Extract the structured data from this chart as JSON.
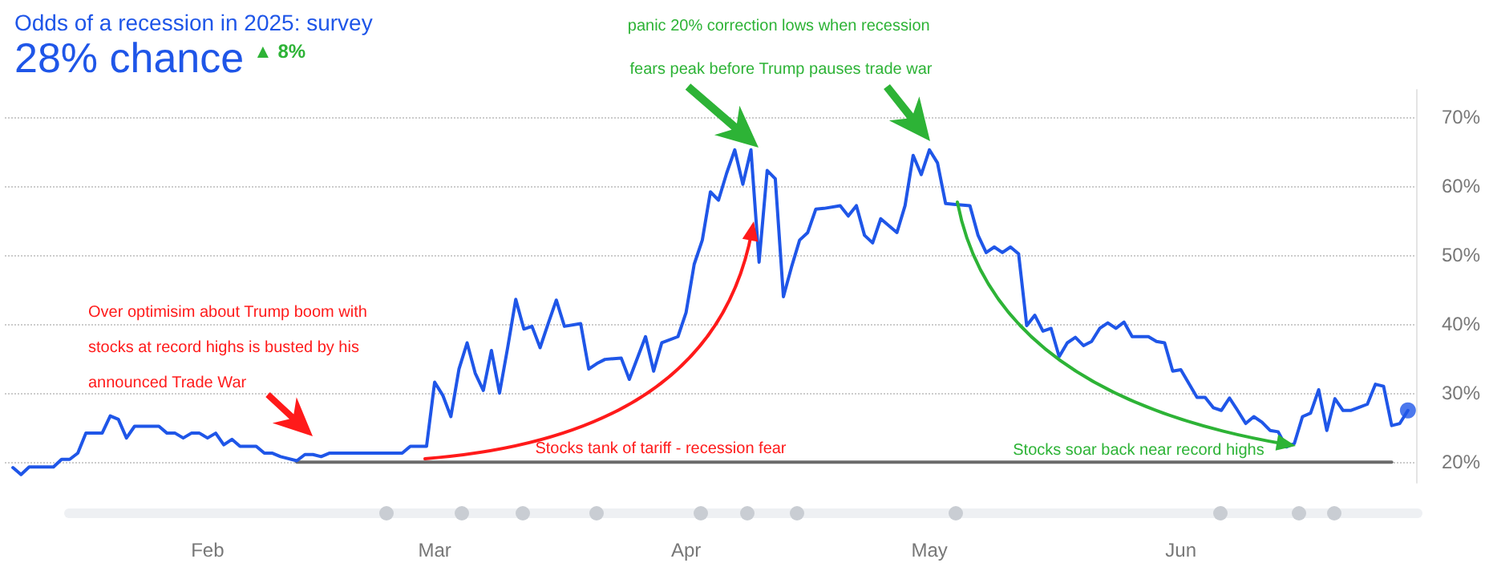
{
  "chart_data": {
    "type": "line",
    "title": "Odds of a recession in 2025: survey",
    "subtitle": "28% chance",
    "xlim": [
      "2025-01-07",
      "2025-06-30"
    ],
    "xticks": [
      {
        "value": "2025-02-01",
        "label": "Feb"
      },
      {
        "value": "2025-03-01",
        "label": "Mar"
      },
      {
        "value": "2025-04-01",
        "label": "Apr"
      },
      {
        "value": "2025-05-01",
        "label": "May"
      },
      {
        "value": "2025-06-01",
        "label": "Jun"
      }
    ],
    "ylim": [
      17,
      74
    ],
    "yticks": [
      {
        "value": 20,
        "label": "20%"
      },
      {
        "value": 30,
        "label": "30%"
      },
      {
        "value": 40,
        "label": "40%"
      },
      {
        "value": 50,
        "label": "50%"
      },
      {
        "value": 60,
        "label": "60%"
      },
      {
        "value": 70,
        "label": "70%"
      }
    ],
    "grid": "y",
    "series": [
      {
        "color": "#1f56e8",
        "x": [
          "2025-01-08",
          "2025-01-09",
          "2025-01-10",
          "2025-01-13",
          "2025-01-14",
          "2025-01-15",
          "2025-01-16",
          "2025-01-17",
          "2025-01-19",
          "2025-01-20",
          "2025-01-21",
          "2025-01-22",
          "2025-01-23",
          "2025-01-26",
          "2025-01-27",
          "2025-01-28",
          "2025-01-29",
          "2025-01-30",
          "2025-01-31",
          "2025-02-01",
          "2025-02-02",
          "2025-02-03",
          "2025-02-04",
          "2025-02-05",
          "2025-02-07",
          "2025-02-08",
          "2025-02-09",
          "2025-02-10",
          "2025-02-12",
          "2025-02-13",
          "2025-02-14",
          "2025-02-15",
          "2025-02-16",
          "2025-02-25",
          "2025-02-26",
          "2025-02-28",
          "2025-03-01",
          "2025-03-02",
          "2025-03-03",
          "2025-03-04",
          "2025-03-05",
          "2025-03-06",
          "2025-03-07",
          "2025-03-08",
          "2025-03-09",
          "2025-03-10",
          "2025-03-11",
          "2025-03-12",
          "2025-03-13",
          "2025-03-14",
          "2025-03-15",
          "2025-03-16",
          "2025-03-17",
          "2025-03-19",
          "2025-03-20",
          "2025-03-21",
          "2025-03-22",
          "2025-03-24",
          "2025-03-25",
          "2025-03-27",
          "2025-03-28",
          "2025-03-29",
          "2025-03-31",
          "2025-04-01",
          "2025-04-02",
          "2025-04-03",
          "2025-04-04",
          "2025-04-05",
          "2025-04-06",
          "2025-04-07",
          "2025-04-08",
          "2025-04-09",
          "2025-04-10",
          "2025-04-11",
          "2025-04-12",
          "2025-04-13",
          "2025-04-14",
          "2025-04-15",
          "2025-04-16",
          "2025-04-17",
          "2025-04-18",
          "2025-04-20",
          "2025-04-21",
          "2025-04-22",
          "2025-04-23",
          "2025-04-24",
          "2025-04-25",
          "2025-04-27",
          "2025-04-28",
          "2025-04-29",
          "2025-04-30",
          "2025-05-01",
          "2025-05-02",
          "2025-05-03",
          "2025-05-04",
          "2025-05-06",
          "2025-05-07",
          "2025-05-08",
          "2025-05-09",
          "2025-05-10",
          "2025-05-11",
          "2025-05-12",
          "2025-05-13",
          "2025-05-14",
          "2025-05-15",
          "2025-05-16",
          "2025-05-17",
          "2025-05-18",
          "2025-05-19",
          "2025-05-20",
          "2025-05-21",
          "2025-05-22",
          "2025-05-23",
          "2025-05-24",
          "2025-05-25",
          "2025-05-26",
          "2025-05-28",
          "2025-05-29",
          "2025-05-30",
          "2025-05-31",
          "2025-06-01",
          "2025-06-03",
          "2025-06-04",
          "2025-06-05",
          "2025-06-06",
          "2025-06-07",
          "2025-06-08",
          "2025-06-09",
          "2025-06-10",
          "2025-06-11",
          "2025-06-12",
          "2025-06-13",
          "2025-06-14",
          "2025-06-15",
          "2025-06-16",
          "2025-06-17",
          "2025-06-18",
          "2025-06-19",
          "2025-06-20",
          "2025-06-21",
          "2025-06-22",
          "2025-06-24",
          "2025-06-25",
          "2025-06-26",
          "2025-06-27",
          "2025-06-28",
          "2025-06-29"
        ],
        "values": [
          19.2,
          18.2,
          19.3,
          19.3,
          20.4,
          20.4,
          21.3,
          24.2,
          24.2,
          26.7,
          26.2,
          23.5,
          25.2,
          25.2,
          24.2,
          24.2,
          23.5,
          24.2,
          24.2,
          23.5,
          24.2,
          22.5,
          23.3,
          22.3,
          22.3,
          21.3,
          21.3,
          20.8,
          20.2,
          21.1,
          21.1,
          20.8,
          21.3,
          21.3,
          22.3,
          22.3,
          31.6,
          29.7,
          26.6,
          33.5,
          37.3,
          32.9,
          30.4,
          36.2,
          30.0,
          36.6,
          43.6,
          39.3,
          39.7,
          36.6,
          40.1,
          43.5,
          39.7,
          40.1,
          33.5,
          34.3,
          34.9,
          35.1,
          32.0,
          38.2,
          33.2,
          37.3,
          38.2,
          41.7,
          48.7,
          52.2,
          59.2,
          58.0,
          61.9,
          65.3,
          60.3,
          65.3,
          49.0,
          62.3,
          61.1,
          44.0,
          48.3,
          52.2,
          53.3,
          56.7,
          56.8,
          57.2,
          55.7,
          57.2,
          52.9,
          51.8,
          55.3,
          53.3,
          57.2,
          64.5,
          61.7,
          65.3,
          63.4,
          57.5,
          57.4,
          57.2,
          52.9,
          50.4,
          51.2,
          50.4,
          51.2,
          50.2,
          39.8,
          41.3,
          39.0,
          39.4,
          35.3,
          37.3,
          38.1,
          36.9,
          37.5,
          39.4,
          40.2,
          39.4,
          40.3,
          38.2,
          38.2,
          37.5,
          37.3,
          33.2,
          33.4,
          29.4,
          29.4,
          27.9,
          27.5,
          29.3,
          27.5,
          25.6,
          26.6,
          25.8,
          24.6,
          24.4,
          22.2,
          22.7,
          26.6,
          27.1,
          30.5,
          24.6,
          29.2,
          27.5,
          27.5,
          28.4,
          31.3,
          31.0,
          25.3,
          25.6,
          27.5
        ]
      },
      {
        "type": "scatter",
        "color": "#1f56e8",
        "marker": "circle",
        "x": [
          "2025-06-29"
        ],
        "values": [
          27.5
        ]
      },
      {
        "type": "line",
        "color": "#6b6b6b",
        "x": [
          "2025-02-12",
          "2025-06-27"
        ],
        "values": [
          20,
          20
        ]
      }
    ],
    "annotations": [
      "▲ 8%",
      "panic 20% correction lows when recession fears peak before Trump pauses trade war",
      "Over optimisim about Trump boom with stocks at record highs is busted by his announced Trade War",
      "Stocks tank of tariff - recession fear",
      "Stocks soar back near record highs"
    ]
  }
}
